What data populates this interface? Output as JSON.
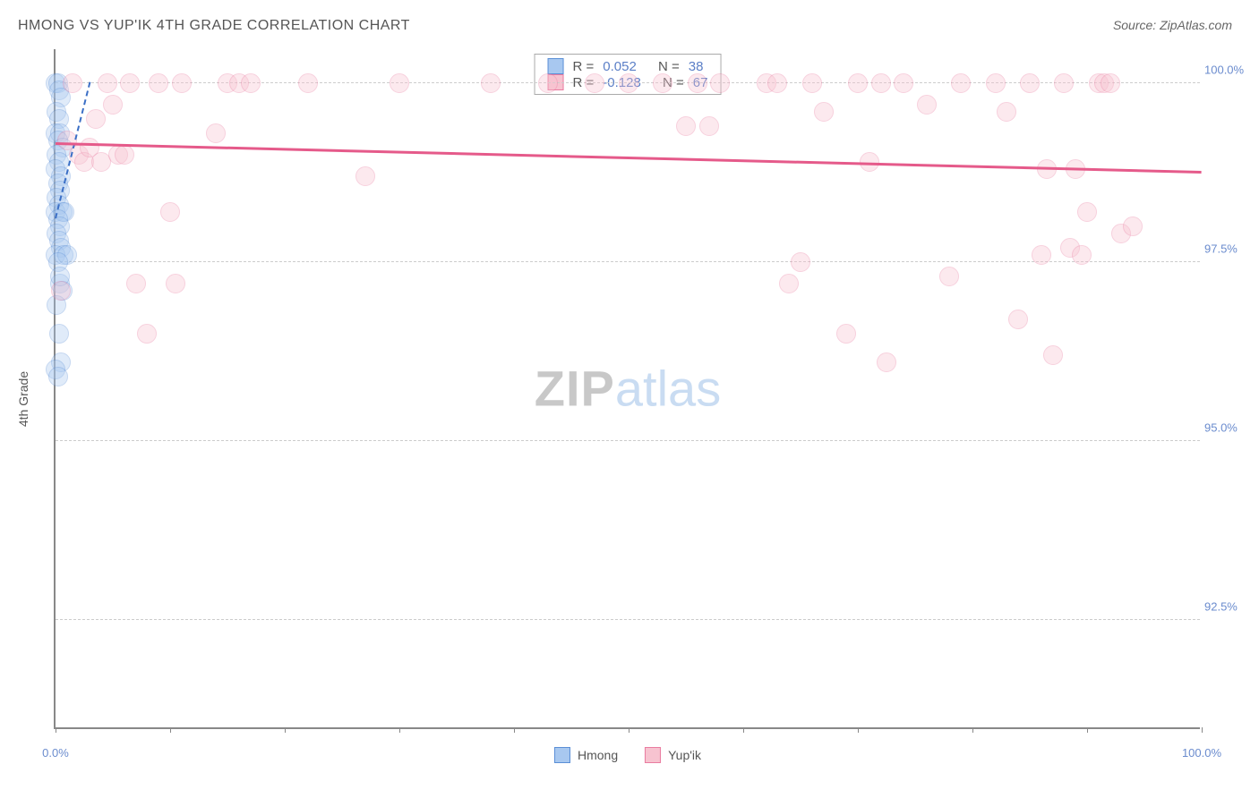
{
  "title": "HMONG VS YUP'IK 4TH GRADE CORRELATION CHART",
  "source": "Source: ZipAtlas.com",
  "y_axis_label": "4th Grade",
  "watermark": {
    "part1": "ZIP",
    "part2": "atlas"
  },
  "chart": {
    "type": "scatter",
    "xlim": [
      0,
      100
    ],
    "ylim": [
      91.0,
      100.5
    ],
    "x_ticks": [
      0,
      10,
      20,
      30,
      40,
      50,
      60,
      70,
      80,
      90,
      100
    ],
    "x_tick_labels": {
      "0": "0.0%",
      "100": "100.0%"
    },
    "y_gridlines": [
      92.5,
      95.0,
      97.5,
      100.0
    ],
    "y_tick_labels": {
      "92.5": "92.5%",
      "95.0": "95.0%",
      "97.5": "97.5%",
      "100.0": "100.0%"
    },
    "background_color": "#ffffff",
    "grid_color": "#cccccc",
    "axis_color": "#888888",
    "tick_label_color": "#6b8cce",
    "marker_radius": 11,
    "marker_opacity": 0.35
  },
  "series": [
    {
      "name": "Hmong",
      "color_fill": "#a8c8f0",
      "color_stroke": "#5b8fd6",
      "R": "0.052",
      "N": "38",
      "trend": {
        "x1": 0,
        "y1": 98.1,
        "x2": 3,
        "y2": 100.0,
        "dashed": true,
        "color": "#3b6fc6"
      },
      "points": [
        [
          0.0,
          100.0
        ],
        [
          0.2,
          100.0
        ],
        [
          0.3,
          99.9
        ],
        [
          0.5,
          99.8
        ],
        [
          0.1,
          99.6
        ],
        [
          0.3,
          99.5
        ],
        [
          0.0,
          99.3
        ],
        [
          0.4,
          99.3
        ],
        [
          0.2,
          99.2
        ],
        [
          0.6,
          99.1
        ],
        [
          0.1,
          99.0
        ],
        [
          0.3,
          98.9
        ],
        [
          0.0,
          98.8
        ],
        [
          0.5,
          98.7
        ],
        [
          0.2,
          98.6
        ],
        [
          0.4,
          98.5
        ],
        [
          0.1,
          98.4
        ],
        [
          0.3,
          98.3
        ],
        [
          0.0,
          98.2
        ],
        [
          0.6,
          98.2
        ],
        [
          0.8,
          98.2
        ],
        [
          0.2,
          98.1
        ],
        [
          0.4,
          98.0
        ],
        [
          0.1,
          97.9
        ],
        [
          0.3,
          97.8
        ],
        [
          0.5,
          97.7
        ],
        [
          0.0,
          97.6
        ],
        [
          0.7,
          97.6
        ],
        [
          1.0,
          97.6
        ],
        [
          0.2,
          97.5
        ],
        [
          0.4,
          97.2
        ],
        [
          0.6,
          97.1
        ],
        [
          0.1,
          96.9
        ],
        [
          0.3,
          96.5
        ],
        [
          0.5,
          96.1
        ],
        [
          0.0,
          96.0
        ],
        [
          0.2,
          95.9
        ],
        [
          0.4,
          97.3
        ]
      ]
    },
    {
      "name": "Yup'ik",
      "color_fill": "#f7c3d0",
      "color_stroke": "#e97ca0",
      "R": "-0.128",
      "N": "67",
      "trend": {
        "x1": 0,
        "y1": 99.15,
        "x2": 100,
        "y2": 98.75,
        "dashed": false,
        "color": "#e55a8a"
      },
      "points": [
        [
          0.5,
          97.1
        ],
        [
          1.0,
          99.2
        ],
        [
          1.5,
          100.0
        ],
        [
          2.0,
          99.0
        ],
        [
          2.5,
          98.9
        ],
        [
          3.0,
          99.1
        ],
        [
          3.5,
          99.5
        ],
        [
          4.0,
          98.9
        ],
        [
          4.5,
          100.0
        ],
        [
          5.0,
          99.7
        ],
        [
          5.5,
          99.0
        ],
        [
          6.0,
          99.0
        ],
        [
          6.5,
          100.0
        ],
        [
          7.0,
          97.2
        ],
        [
          8.0,
          96.5
        ],
        [
          9.0,
          100.0
        ],
        [
          10.0,
          98.2
        ],
        [
          10.5,
          97.2
        ],
        [
          11.0,
          100.0
        ],
        [
          14.0,
          99.3
        ],
        [
          15.0,
          100.0
        ],
        [
          16.0,
          100.0
        ],
        [
          17.0,
          100.0
        ],
        [
          22.0,
          100.0
        ],
        [
          27.0,
          98.7
        ],
        [
          30.0,
          100.0
        ],
        [
          38.0,
          100.0
        ],
        [
          43.0,
          100.0
        ],
        [
          47.0,
          100.0
        ],
        [
          50.0,
          100.0
        ],
        [
          53.0,
          100.0
        ],
        [
          55.0,
          99.4
        ],
        [
          56.0,
          100.0
        ],
        [
          57.0,
          99.4
        ],
        [
          58.0,
          100.0
        ],
        [
          62.0,
          100.0
        ],
        [
          63.0,
          100.0
        ],
        [
          64.0,
          97.2
        ],
        [
          65.0,
          97.5
        ],
        [
          66.0,
          100.0
        ],
        [
          67.0,
          99.6
        ],
        [
          69.0,
          96.5
        ],
        [
          70.0,
          100.0
        ],
        [
          71.0,
          98.9
        ],
        [
          72.0,
          100.0
        ],
        [
          72.5,
          96.1
        ],
        [
          74.0,
          100.0
        ],
        [
          76.0,
          99.7
        ],
        [
          78.0,
          97.3
        ],
        [
          79.0,
          100.0
        ],
        [
          82.0,
          100.0
        ],
        [
          83.0,
          99.6
        ],
        [
          84.0,
          96.7
        ],
        [
          85.0,
          100.0
        ],
        [
          86.0,
          97.6
        ],
        [
          86.5,
          98.8
        ],
        [
          87.0,
          96.2
        ],
        [
          88.0,
          100.0
        ],
        [
          88.5,
          97.7
        ],
        [
          89.0,
          98.8
        ],
        [
          89.5,
          97.6
        ],
        [
          90.0,
          98.2
        ],
        [
          91.0,
          100.0
        ],
        [
          91.5,
          100.0
        ],
        [
          92.0,
          100.0
        ],
        [
          93.0,
          97.9
        ],
        [
          94.0,
          98.0
        ]
      ]
    }
  ],
  "legend_labels": {
    "r": "R =",
    "n": "N ="
  },
  "bottom_legend": [
    {
      "label": "Hmong",
      "fill": "#a8c8f0",
      "stroke": "#5b8fd6"
    },
    {
      "label": "Yup'ik",
      "fill": "#f7c3d0",
      "stroke": "#e97ca0"
    }
  ]
}
